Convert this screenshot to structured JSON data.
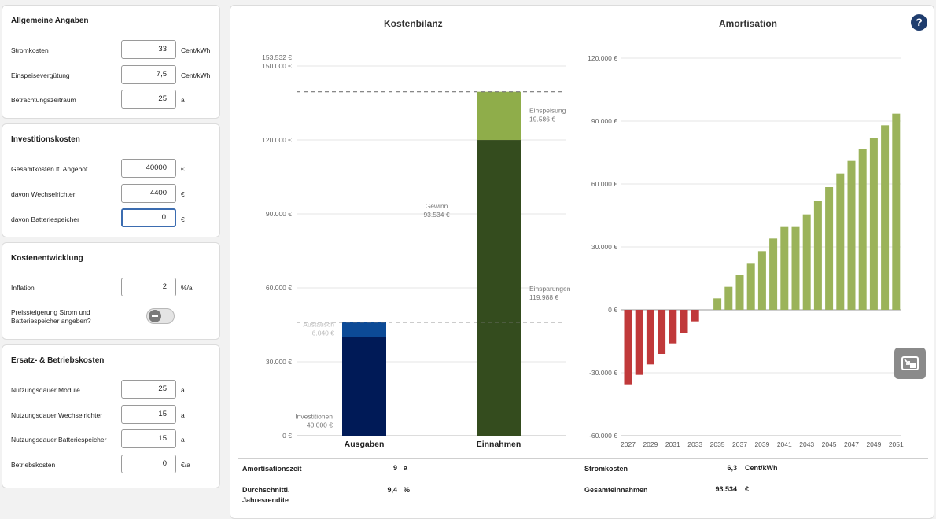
{
  "general": {
    "title": "Allgemeine Angaben",
    "rows": [
      {
        "label": "Stromkosten",
        "value": "33",
        "unit": "Cent/kWh"
      },
      {
        "label": "Einspeisevergütung",
        "value": "7,5",
        "unit": "Cent/kWh"
      },
      {
        "label": "Betrachtungszeitraum",
        "value": "25",
        "unit": "a"
      }
    ]
  },
  "investment": {
    "title": "Investitionskosten",
    "rows": [
      {
        "label": "Gesamtkosten lt. Angebot",
        "value": "40000",
        "unit": "€"
      },
      {
        "label": "davon Wechselrichter",
        "value": "4400",
        "unit": "€"
      },
      {
        "label": "davon Batteriespeicher",
        "value": "0",
        "unit": "€"
      }
    ]
  },
  "costdev": {
    "title": "Kostenentwicklung",
    "rows": [
      {
        "label": "Inflation",
        "value": "2",
        "unit": "%/a"
      }
    ],
    "toggle_label": "Preissteigerung Strom und Batteriespeicher angeben?"
  },
  "operating": {
    "title": "Ersatz- & Betriebskosten",
    "rows": [
      {
        "label": "Nutzungsdauer Module",
        "value": "25",
        "unit": "a"
      },
      {
        "label": "Nutzungsdauer Wechselrichter",
        "value": "15",
        "unit": "a"
      },
      {
        "label": "Nutzungsdauer Batteriespeicher",
        "value": "15",
        "unit": "a"
      },
      {
        "label": "Betriebskosten",
        "value": "0",
        "unit": "€/a"
      }
    ]
  },
  "help_icon": "question-circle-icon",
  "colors": {
    "investitionen": "#001a57",
    "austausch": "#0c4a96",
    "einsparungen": "#344c1e",
    "einspeisung": "#8fad4a",
    "positive_bar": "#9bb35a",
    "negative_bar": "#c0393a"
  },
  "chart_data": [
    {
      "type": "bar",
      "title": "Kostenbilanz",
      "categories": [
        "Ausgaben",
        "Einnahmen"
      ],
      "stacked": true,
      "y_ticks": [
        "0 €",
        "30.000 €",
        "60.000 €",
        "90.000 €",
        "120.000 €",
        "150.000 €",
        "153.532 €"
      ],
      "ylim": [
        0,
        153532
      ],
      "series": [
        {
          "category": "Ausgaben",
          "name": "Investitionen",
          "value": 40000,
          "value_label": "40.000 €",
          "color_key": "investitionen"
        },
        {
          "category": "Ausgaben",
          "name": "Austausch",
          "value": 6040,
          "value_label": "6.040 €",
          "color_key": "austausch"
        },
        {
          "category": "Einnahmen",
          "name": "Einsparungen",
          "value": 119988,
          "value_label": "119.988 €",
          "color_key": "einsparungen"
        },
        {
          "category": "Einnahmen",
          "name": "Einspeisung",
          "value": 19586,
          "value_label": "19.586 €",
          "color_key": "einspeisung"
        }
      ],
      "gain": {
        "name": "Gewinn",
        "value": 93534,
        "value_label": "93.534 €"
      },
      "reference_lines": [
        46040,
        139574
      ]
    },
    {
      "type": "bar",
      "title": "Amortisation",
      "x_ticks": [
        "2027",
        "2029",
        "2031",
        "2033",
        "2035",
        "2037",
        "2039",
        "2041",
        "2043",
        "2045",
        "2047",
        "2049",
        "2051"
      ],
      "y_ticks": [
        "-60.000 €",
        "-30.000 €",
        "0 €",
        "30.000 €",
        "60.000 €",
        "90.000 €",
        "120.000 €"
      ],
      "ylim": [
        -60000,
        120000
      ],
      "x": [
        2027,
        2028,
        2029,
        2030,
        2031,
        2032,
        2033,
        2034,
        2035,
        2036,
        2037,
        2038,
        2039,
        2040,
        2041,
        2042,
        2043,
        2044,
        2045,
        2046,
        2047,
        2048,
        2049,
        2050,
        2051
      ],
      "values": [
        -35500,
        -31000,
        -26000,
        -21000,
        -16000,
        -11000,
        -5500,
        0,
        5500,
        11000,
        16500,
        22000,
        28000,
        34000,
        39500,
        39500,
        45500,
        52000,
        58500,
        65000,
        71000,
        76500,
        82000,
        88000,
        93500
      ]
    }
  ],
  "summary": {
    "amort_label": "Amortisationszeit",
    "amort_value": "9",
    "amort_unit": "a",
    "rendite_label": "Durchschnittl. Jahresrendite",
    "rendite_value": "9,4",
    "rendite_unit": "%",
    "strom_label": "Stromkosten",
    "strom_value": "6,3",
    "strom_unit": "Cent/kWh",
    "einnahmen_label": "Gesamteinnahmen",
    "einnahmen_value": "93.534",
    "einnahmen_unit": "€"
  }
}
